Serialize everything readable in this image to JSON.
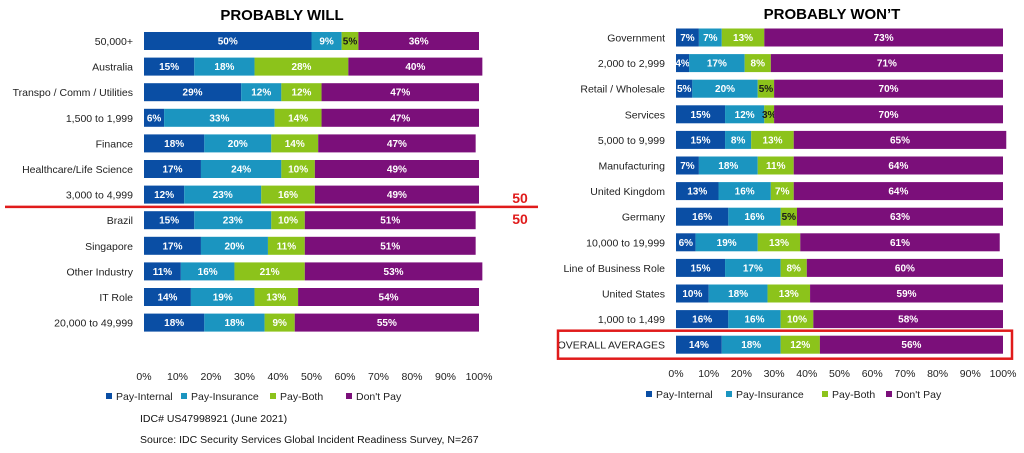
{
  "colors": {
    "pay_internal": "#0a4ea4",
    "pay_insurance": "#1b95c0",
    "pay_both": "#8cc31b",
    "dont_pay": "#7b0f7a",
    "highlight": "#e01b1b"
  },
  "chart_data": [
    {
      "type": "bar",
      "orientation": "horizontal-stacked",
      "title": "PROBABLY WILL",
      "categories": [
        "50,000+",
        "Australia",
        "Transpo / Comm / Utilities",
        "1,500 to 1,999",
        "Finance",
        "Healthcare/Life Science",
        "3,000 to 4,999",
        "Brazil",
        "Singapore",
        "Other Industry",
        "IT Role",
        "20,000 to 49,999"
      ],
      "series": [
        {
          "name": "Pay-Internal",
          "values": [
            50,
            15,
            29,
            6,
            18,
            17,
            12,
            15,
            17,
            11,
            14,
            18
          ]
        },
        {
          "name": "Pay-Insurance",
          "values": [
            9,
            18,
            12,
            33,
            20,
            24,
            23,
            23,
            20,
            16,
            19,
            18
          ]
        },
        {
          "name": "Pay-Both",
          "values": [
            5,
            28,
            12,
            14,
            14,
            10,
            16,
            10,
            11,
            21,
            13,
            9
          ]
        },
        {
          "name": "Don't Pay",
          "values": [
            36,
            40,
            47,
            47,
            47,
            49,
            49,
            51,
            51,
            53,
            54,
            55
          ]
        }
      ],
      "xlim": [
        0,
        100
      ],
      "x_ticks": [
        "0%",
        "10%",
        "20%",
        "30%",
        "40%",
        "50%",
        "60%",
        "70%",
        "80%",
        "90%",
        "100%"
      ],
      "legend": "bottom",
      "divider_after_index": 6,
      "divider_labels": [
        "50",
        "50"
      ]
    },
    {
      "type": "bar",
      "orientation": "horizontal-stacked",
      "title": "PROBABLY WON’T",
      "categories": [
        "Government",
        "2,000 to 2,999",
        "Retail / Wholesale",
        "Services",
        "5,000 to 9,999",
        "Manufacturing",
        "United Kingdom",
        "Germany",
        "10,000 to 19,999",
        "Line of Business Role",
        "United States",
        "1,000 to 1,499",
        "OVERALL AVERAGES"
      ],
      "series": [
        {
          "name": "Pay-Internal",
          "values": [
            7,
            4,
            5,
            15,
            15,
            7,
            13,
            16,
            6,
            15,
            10,
            16,
            14
          ]
        },
        {
          "name": "Pay-Insurance",
          "values": [
            7,
            17,
            20,
            12,
            8,
            18,
            16,
            16,
            19,
            17,
            18,
            16,
            18
          ]
        },
        {
          "name": "Pay-Both",
          "values": [
            13,
            8,
            5,
            3,
            13,
            11,
            7,
            5,
            13,
            8,
            13,
            10,
            12
          ]
        },
        {
          "name": "Don't Pay",
          "values": [
            73,
            71,
            70,
            70,
            65,
            64,
            64,
            63,
            61,
            60,
            59,
            58,
            56
          ]
        }
      ],
      "xlim": [
        0,
        100
      ],
      "x_ticks": [
        "0%",
        "10%",
        "20%",
        "30%",
        "40%",
        "50%",
        "60%",
        "70%",
        "80%",
        "90%",
        "100%"
      ],
      "legend": "bottom",
      "highlighted_category": "OVERALL AVERAGES"
    }
  ],
  "legend": {
    "items": [
      "Pay-Internal",
      "Pay-Insurance",
      "Pay-Both",
      "Don't Pay"
    ]
  },
  "footnotes": {
    "doc_id": "IDC# US47998921  (June 2021)",
    "source": "Source:  IDC Security Services  Global Incident Readiness  Survey,  N=267"
  }
}
